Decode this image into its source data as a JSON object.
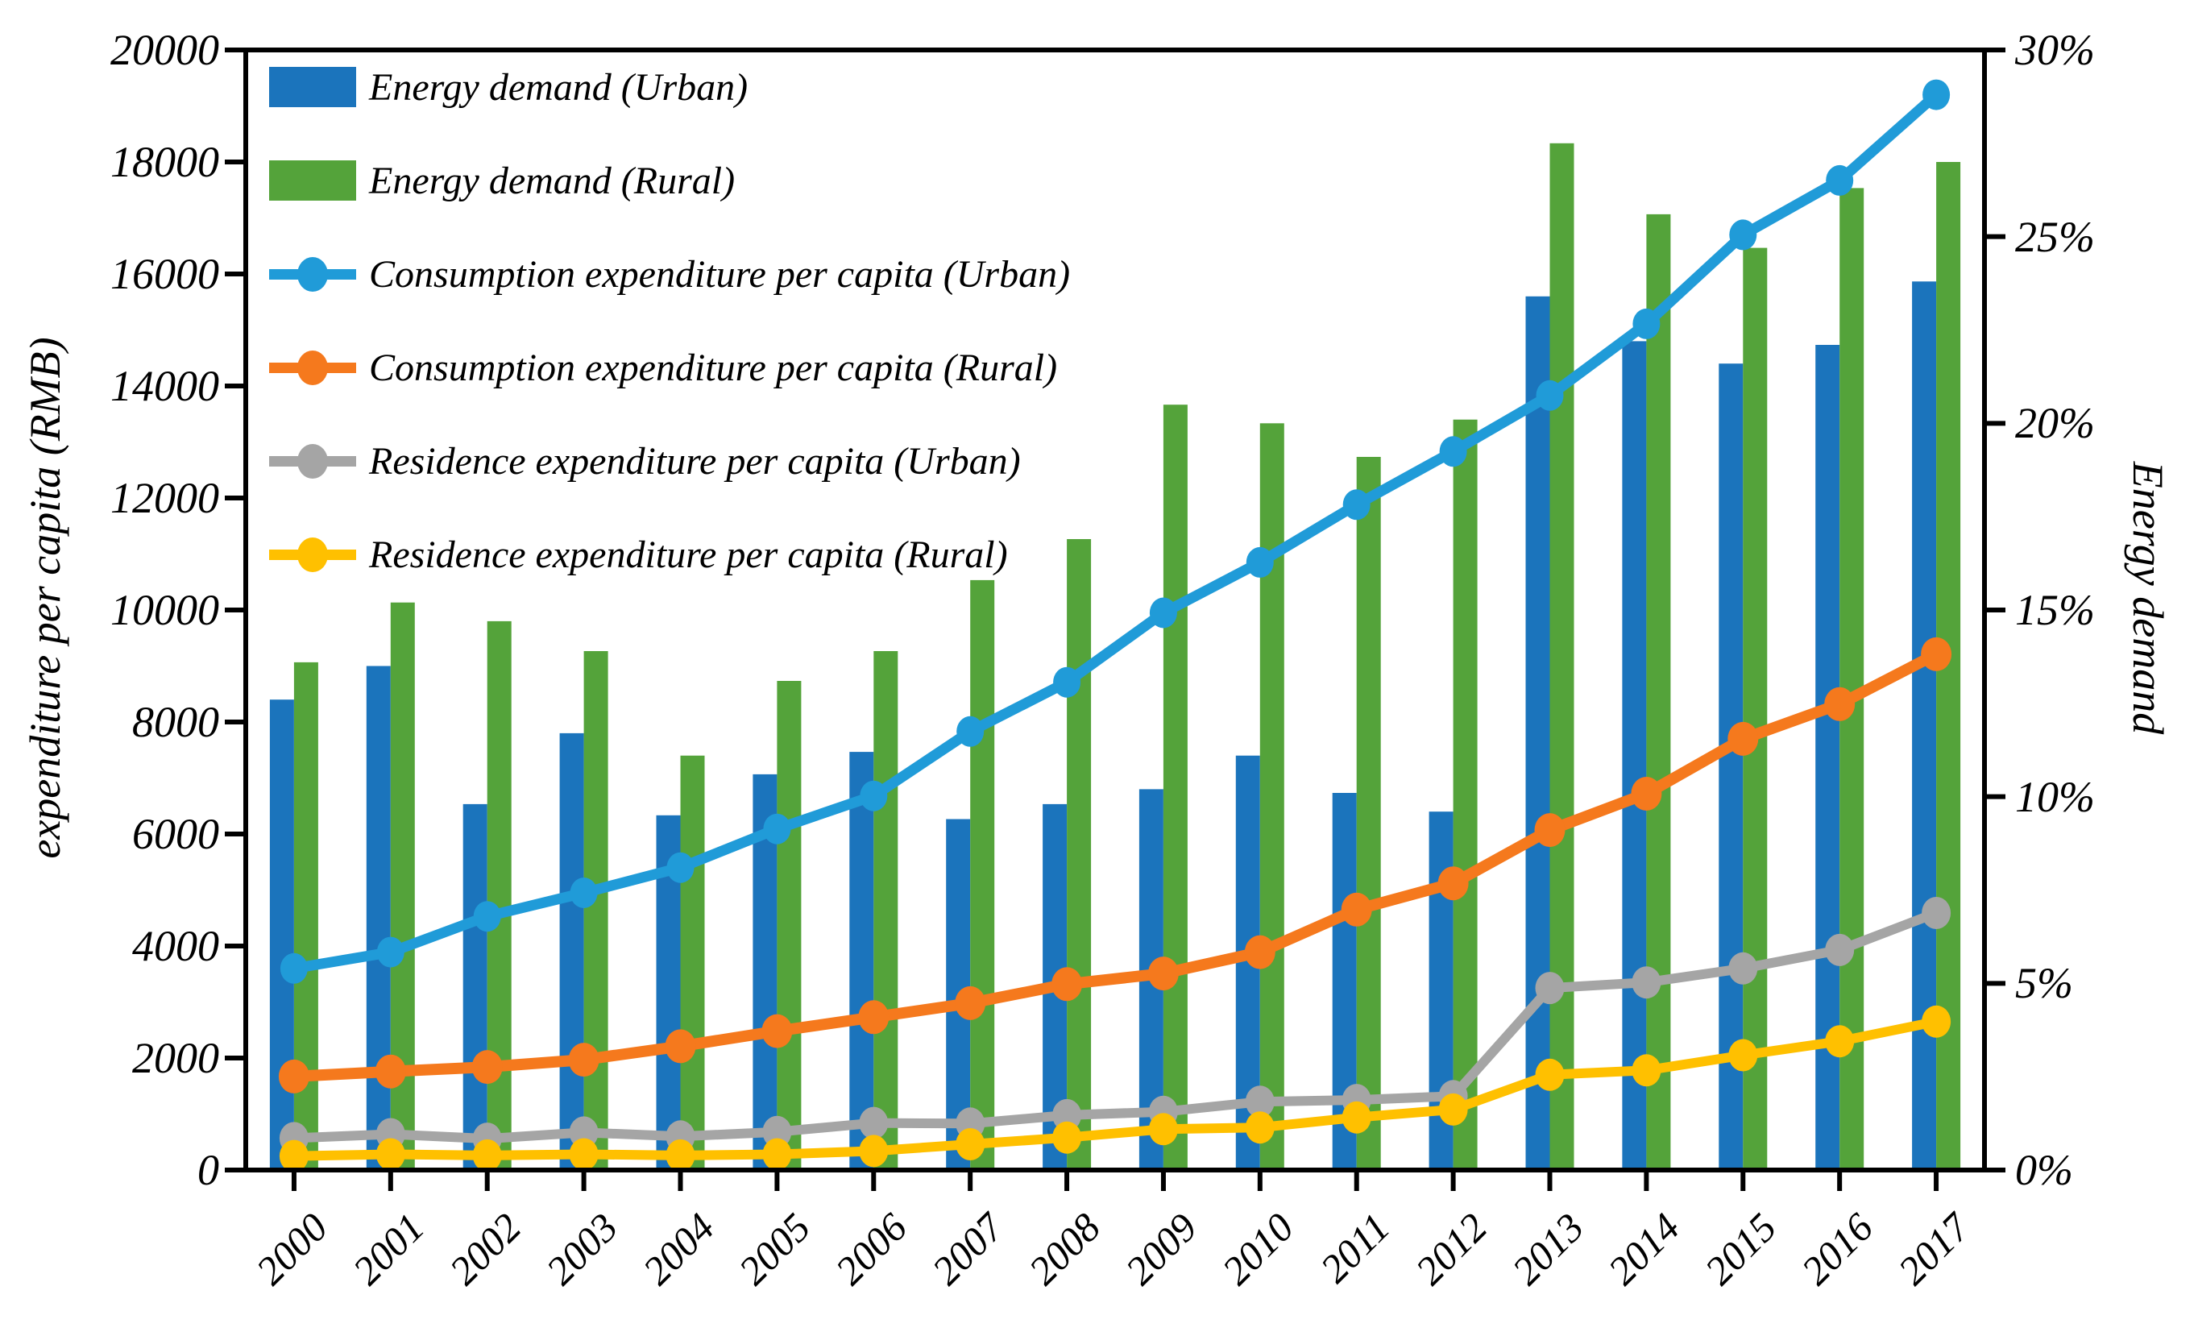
{
  "chart_data": {
    "type": "combo-bar-line",
    "title": "",
    "years": [
      "2000",
      "2001",
      "2002",
      "2003",
      "2004",
      "2005",
      "2006",
      "2007",
      "2008",
      "2009",
      "2010",
      "2011",
      "2012",
      "2013",
      "2014",
      "2015",
      "2016",
      "2017"
    ],
    "left_axis": {
      "label": "expenditure per capita (RMB)",
      "min": 0,
      "max": 20000,
      "step": 2000,
      "tick_labels": [
        "0",
        "2000",
        "4000",
        "6000",
        "8000",
        "10000",
        "12000",
        "14000",
        "16000",
        "18000",
        "20000"
      ]
    },
    "right_axis": {
      "label": "Energy demand",
      "min": 0,
      "max": 30,
      "step": 5,
      "tick_labels": [
        "0%",
        "5%",
        "10%",
        "15%",
        "20%",
        "25%",
        "30%"
      ]
    },
    "grid": "off",
    "legend_position": "top-left-inside",
    "series": [
      {
        "name": "Energy demand (Urban)",
        "type": "bar",
        "axis": "right",
        "unit": "percent",
        "color": "#1b74bc",
        "values": [
          12.6,
          13.5,
          9.8,
          11.7,
          9.5,
          10.6,
          11.2,
          9.4,
          9.8,
          10.2,
          11.1,
          10.1,
          9.6,
          23.4,
          22.2,
          21.6,
          22.1,
          23.8
        ]
      },
      {
        "name": "Energy demand (Rural)",
        "type": "bar",
        "axis": "right",
        "unit": "percent",
        "color": "#54a33a",
        "values": [
          13.6,
          15.2,
          14.7,
          13.9,
          11.1,
          13.1,
          13.9,
          15.8,
          16.9,
          20.5,
          20.0,
          19.1,
          20.1,
          27.5,
          25.6,
          24.7,
          26.3,
          27.0
        ]
      },
      {
        "name": "Consumption expenditure per capita (Urban)",
        "type": "line",
        "axis": "left",
        "unit": "RMB",
        "color": "#209bd8",
        "values": [
          3600,
          3890,
          4530,
          4950,
          5400,
          6090,
          6680,
          7830,
          8710,
          9950,
          10850,
          11880,
          12830,
          13830,
          15110,
          16700,
          17670,
          19200
        ]
      },
      {
        "name": "Consumption expenditure per capita (Rural)",
        "type": "line",
        "axis": "left",
        "unit": "RMB",
        "color": "#f5791d",
        "values": [
          1670,
          1760,
          1840,
          1970,
          2210,
          2480,
          2730,
          2980,
          3320,
          3510,
          3890,
          4650,
          5120,
          6070,
          6720,
          7700,
          8320,
          9210
        ]
      },
      {
        "name": "Residence expenditure per capita (Urban)",
        "type": "line",
        "axis": "left",
        "unit": "RMB",
        "color": "#a5a5a5",
        "values": [
          570,
          640,
          560,
          670,
          600,
          680,
          840,
          830,
          980,
          1040,
          1220,
          1250,
          1320,
          3250,
          3350,
          3600,
          3930,
          4590
        ]
      },
      {
        "name": "Residence expenditure per capita (Rural)",
        "type": "line",
        "axis": "left",
        "unit": "RMB",
        "color": "#ffc000",
        "values": [
          250,
          280,
          260,
          280,
          260,
          280,
          340,
          460,
          580,
          730,
          760,
          940,
          1080,
          1700,
          1780,
          2050,
          2300,
          2650
        ]
      }
    ]
  }
}
